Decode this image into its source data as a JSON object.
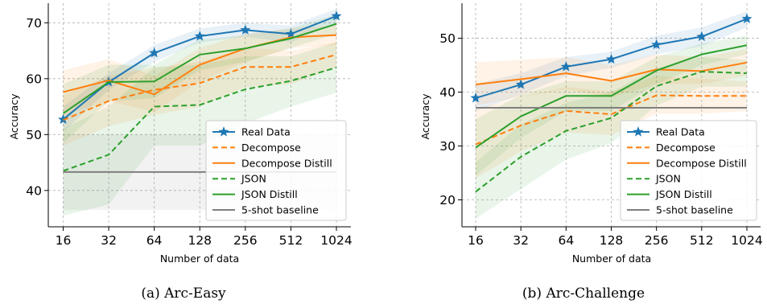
{
  "colors": {
    "real_data": "#1f77b4",
    "decompose": "#ff7f0e",
    "json": "#2ca02c",
    "baseline": "#7f7f7f"
  },
  "chart_data": [
    {
      "id": "arc-easy",
      "type": "line",
      "caption": "(a) Arc-Easy",
      "xlabel": "Number of data",
      "ylabel": "Accuracy",
      "x_scale": "log2",
      "categories": [
        "16",
        "32",
        "64",
        "128",
        "256",
        "512",
        "1024"
      ],
      "ylim": [
        33.5,
        73.5
      ],
      "yticks": [
        40,
        50,
        60,
        70
      ],
      "grid": true,
      "legend_position": "lower-right",
      "series": [
        {
          "name": "Real Data",
          "color": "#1f77b4",
          "style": "solid",
          "marker": "star",
          "values": [
            52.7,
            59.4,
            64.6,
            67.6,
            68.7,
            68.0,
            71.2
          ],
          "band": [
            [
              50.5,
              55.0
            ],
            [
              58.0,
              61.0
            ],
            [
              63.0,
              66.0
            ],
            [
              66.5,
              69.0
            ],
            [
              67.5,
              70.0
            ],
            [
              66.5,
              69.5
            ],
            [
              70.0,
              72.5
            ]
          ]
        },
        {
          "name": "Decompose",
          "color": "#ff7f0e",
          "style": "dashed",
          "values": [
            52.6,
            56.0,
            58.0,
            59.2,
            62.1,
            62.1,
            64.3
          ],
          "band": [
            [
              48.0,
              57.0
            ],
            [
              51.5,
              60.5
            ],
            [
              53.5,
              62.0
            ],
            [
              55.0,
              63.0
            ],
            [
              58.5,
              65.5
            ],
            [
              59.0,
              65.0
            ],
            [
              62.0,
              66.5
            ]
          ]
        },
        {
          "name": "Decompose Distill",
          "color": "#ff7f0e",
          "style": "solid",
          "values": [
            57.6,
            59.7,
            57.2,
            62.5,
            65.4,
            67.4,
            67.8
          ],
          "band": [
            [
              53.5,
              61.5
            ],
            [
              56.0,
              63.5
            ],
            [
              54.0,
              60.5
            ],
            [
              59.5,
              65.5
            ],
            [
              63.0,
              68.0
            ],
            [
              65.5,
              69.0
            ],
            [
              66.0,
              69.5
            ]
          ]
        },
        {
          "name": "JSON",
          "color": "#2ca02c",
          "style": "dashed",
          "values": [
            43.5,
            46.4,
            55.0,
            55.3,
            58.1,
            59.6,
            62.0
          ],
          "band": [
            [
              35.5,
              51.0
            ],
            [
              37.5,
              55.0
            ],
            [
              48.0,
              62.0
            ],
            [
              48.0,
              62.5
            ],
            [
              52.0,
              64.0
            ],
            [
              55.0,
              64.0
            ],
            [
              57.5,
              66.5
            ]
          ]
        },
        {
          "name": "JSON Distill",
          "color": "#2ca02c",
          "style": "solid",
          "values": [
            53.8,
            59.4,
            59.5,
            64.3,
            65.4,
            67.2,
            69.8
          ],
          "band": [
            [
              48.5,
              59.0
            ],
            [
              56.0,
              62.5
            ],
            [
              56.5,
              62.5
            ],
            [
              61.5,
              67.0
            ],
            [
              63.0,
              67.8
            ],
            [
              65.5,
              69.0
            ],
            [
              68.0,
              71.5
            ]
          ]
        },
        {
          "name": "5-shot baseline",
          "color": "#7f7f7f",
          "style": "solid",
          "values": [
            43.3,
            43.3,
            43.3,
            43.3,
            43.3,
            43.3,
            43.3
          ],
          "band": [
            [
              36.5,
              50.0
            ],
            [
              36.5,
              50.0
            ],
            [
              36.5,
              50.0
            ],
            [
              36.5,
              50.0
            ],
            [
              36.5,
              50.0
            ],
            [
              36.5,
              50.0
            ],
            [
              36.5,
              50.0
            ]
          ]
        }
      ]
    },
    {
      "id": "arc-challenge",
      "type": "line",
      "caption": "(b) Arc-Challenge",
      "xlabel": "Number of data",
      "ylabel": "Accuracy",
      "x_scale": "log2",
      "categories": [
        "16",
        "32",
        "64",
        "128",
        "256",
        "512",
        "1024"
      ],
      "ylim": [
        15.0,
        56.5
      ],
      "yticks": [
        20,
        30,
        40,
        50
      ],
      "grid": true,
      "legend_position": "lower-right",
      "series": [
        {
          "name": "Real Data",
          "color": "#1f77b4",
          "style": "solid",
          "marker": "star",
          "values": [
            38.9,
            41.4,
            44.7,
            46.1,
            48.8,
            50.3,
            53.6
          ],
          "band": [
            [
              36.5,
              41.5
            ],
            [
              39.5,
              43.5
            ],
            [
              43.0,
              46.5
            ],
            [
              44.5,
              47.5
            ],
            [
              47.0,
              50.5
            ],
            [
              48.5,
              52.0
            ],
            [
              52.0,
              55.0
            ]
          ]
        },
        {
          "name": "Decompose",
          "color": "#ff7f0e",
          "style": "dashed",
          "values": [
            30.3,
            33.8,
            36.5,
            35.9,
            39.4,
            39.3,
            39.3
          ],
          "band": [
            [
              24.0,
              37.0
            ],
            [
              29.0,
              39.0
            ],
            [
              32.5,
              41.0
            ],
            [
              32.0,
              40.0
            ],
            [
              36.0,
              43.0
            ],
            [
              36.0,
              42.5
            ],
            [
              36.5,
              42.0
            ]
          ]
        },
        {
          "name": "Decompose Distill",
          "color": "#ff7f0e",
          "style": "solid",
          "values": [
            41.4,
            42.4,
            43.5,
            42.1,
            44.2,
            43.9,
            45.5
          ],
          "band": [
            [
              37.5,
              45.5
            ],
            [
              39.0,
              46.0
            ],
            [
              40.5,
              46.5
            ],
            [
              39.0,
              45.0
            ],
            [
              41.5,
              47.0
            ],
            [
              41.5,
              46.5
            ],
            [
              43.0,
              48.0
            ]
          ]
        },
        {
          "name": "JSON",
          "color": "#2ca02c",
          "style": "dashed",
          "values": [
            21.5,
            28.0,
            32.8,
            35.2,
            41.1,
            43.8,
            43.5
          ],
          "band": [
            [
              16.5,
              27.0
            ],
            [
              22.0,
              34.0
            ],
            [
              27.5,
              38.0
            ],
            [
              30.5,
              40.0
            ],
            [
              37.5,
              44.5
            ],
            [
              41.0,
              46.5
            ],
            [
              41.0,
              46.0
            ]
          ]
        },
        {
          "name": "JSON Distill",
          "color": "#2ca02c",
          "style": "solid",
          "values": [
            29.7,
            35.5,
            39.3,
            39.3,
            44.0,
            47.0,
            48.7
          ],
          "band": [
            [
              24.5,
              35.0
            ],
            [
              31.5,
              39.5
            ],
            [
              36.5,
              42.0
            ],
            [
              36.5,
              42.0
            ],
            [
              41.5,
              46.5
            ],
            [
              45.0,
              49.0
            ],
            [
              47.0,
              50.5
            ]
          ]
        },
        {
          "name": "5-shot baseline",
          "color": "#7f7f7f",
          "style": "solid",
          "values": [
            37.1,
            37.1,
            37.1,
            37.1,
            37.1,
            37.1,
            37.1
          ]
        }
      ]
    }
  ]
}
